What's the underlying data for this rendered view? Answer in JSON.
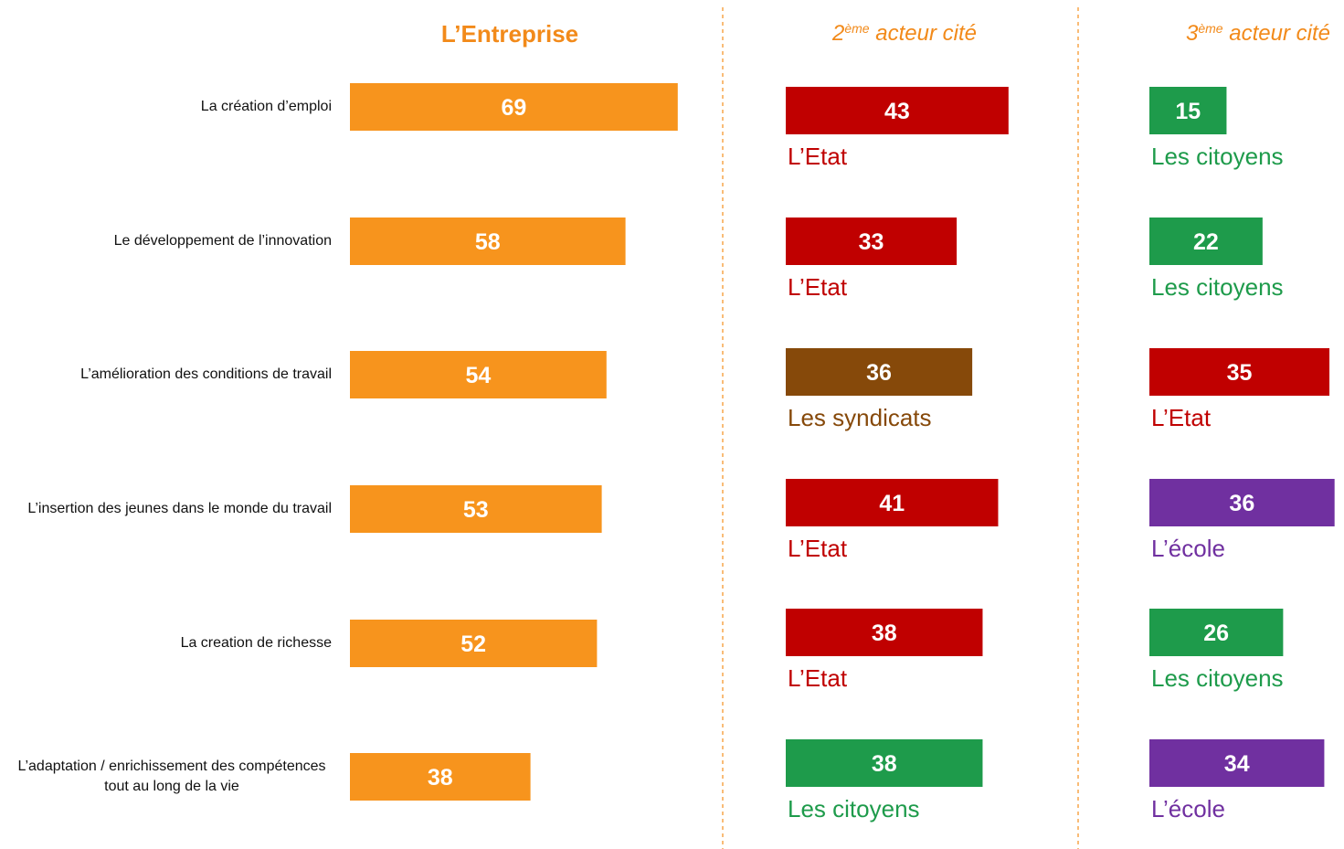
{
  "chart_data": [
    {
      "type": "bar",
      "title": "L’Entreprise",
      "categories": [
        "La création d’emploi",
        "Le développement de l’innovation",
        "L’amélioration des conditions de travail",
        "L’insertion des jeunes dans le monde du travail",
        "La creation de richesse",
        "L’adaptation / enrichissement des compétences tout au long de la vie"
      ],
      "values": [
        69,
        58,
        54,
        53,
        52,
        38
      ],
      "color": "#f7941d"
    },
    {
      "type": "bar",
      "title": [
        "2",
        "ème",
        " acteur cité"
      ],
      "values": [
        43,
        33,
        36,
        41,
        38,
        38
      ],
      "actors": [
        "L’Etat",
        "L’Etat",
        "Les syndicats",
        "L’Etat",
        "L’Etat",
        "Les citoyens"
      ],
      "colors": [
        "#c00000",
        "#c00000",
        "#86490a",
        "#c00000",
        "#c00000",
        "#1e9b4b"
      ]
    },
    {
      "type": "bar",
      "title": [
        "3",
        "ème",
        " acteur cité"
      ],
      "values": [
        15,
        22,
        35,
        36,
        26,
        34
      ],
      "actors": [
        "Les citoyens",
        "Les citoyens",
        "L’Etat",
        "L’école",
        "Les citoyens",
        "L’école"
      ],
      "colors": [
        "#1e9b4b",
        "#1e9b4b",
        "#c00000",
        "#7030a0",
        "#1e9b4b",
        "#7030a0"
      ]
    }
  ]
}
